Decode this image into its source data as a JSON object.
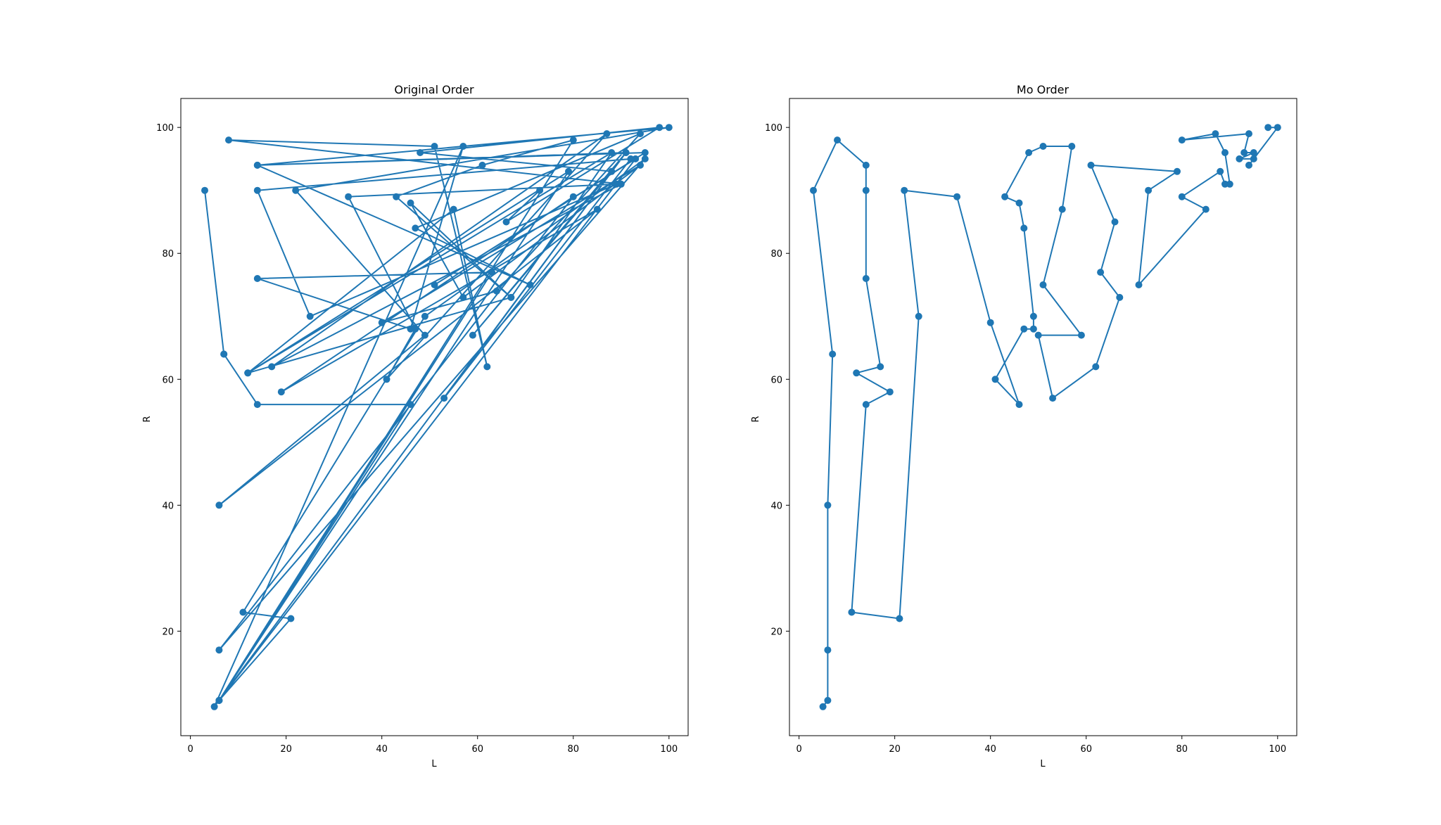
{
  "colors": {
    "series": "#1f77b4"
  },
  "chart_data": [
    {
      "type": "line",
      "title": "Original Order",
      "xlabel": "L",
      "ylabel": "R",
      "xlim": [
        -2,
        104
      ],
      "ylim": [
        3.4,
        104.6
      ],
      "xticks": [
        0,
        20,
        40,
        60,
        80,
        100
      ],
      "yticks": [
        20,
        40,
        60,
        80,
        100
      ],
      "grid": false,
      "marker": "circle",
      "points": [
        [
          3,
          90
        ],
        [
          7,
          64
        ],
        [
          7,
          64
        ],
        [
          14,
          56
        ],
        [
          46,
          56
        ],
        [
          6,
          9
        ],
        [
          63,
          77
        ],
        [
          14,
          76
        ],
        [
          46,
          68
        ],
        [
          57,
          97
        ],
        [
          5,
          8
        ],
        [
          93,
          95
        ],
        [
          51,
          75
        ],
        [
          95,
          96
        ],
        [
          14,
          94
        ],
        [
          100,
          100
        ],
        [
          22,
          90
        ],
        [
          49,
          67
        ],
        [
          6,
          40
        ],
        [
          85,
          87
        ],
        [
          19,
          58
        ],
        [
          80,
          89
        ],
        [
          6,
          17
        ],
        [
          95,
          95
        ],
        [
          49,
          70
        ],
        [
          11,
          23
        ],
        [
          21,
          22
        ],
        [
          6,
          9
        ],
        [
          91,
          96
        ],
        [
          53,
          57
        ],
        [
          92,
          95
        ],
        [
          14,
          90
        ],
        [
          25,
          70
        ],
        [
          89,
          91
        ],
        [
          33,
          89
        ],
        [
          47,
          68
        ],
        [
          41,
          60
        ],
        [
          87,
          99
        ],
        [
          17,
          62
        ],
        [
          90,
          91
        ],
        [
          8,
          98
        ],
        [
          51,
          97
        ],
        [
          62,
          62
        ],
        [
          55,
          87
        ],
        [
          12,
          61
        ],
        [
          88,
          96
        ],
        [
          67,
          73
        ],
        [
          43,
          89
        ],
        [
          61,
          94
        ],
        [
          80,
          98
        ],
        [
          6,
          9
        ],
        [
          79,
          93
        ],
        [
          12,
          61
        ],
        [
          67,
          73
        ],
        [
          46,
          88
        ],
        [
          57,
          73
        ],
        [
          94,
          94
        ],
        [
          40,
          69
        ],
        [
          64,
          74
        ],
        [
          94,
          99
        ],
        [
          47,
          84
        ],
        [
          71,
          75
        ],
        [
          14,
          94
        ],
        [
          91,
          96
        ],
        [
          59,
          67
        ],
        [
          88,
          93
        ],
        [
          48,
          96
        ],
        [
          98,
          100
        ],
        [
          66,
          85
        ],
        [
          73,
          90
        ]
      ]
    },
    {
      "type": "line",
      "title": "Mo Order",
      "xlabel": "L",
      "ylabel": "R",
      "xlim": [
        -2,
        104
      ],
      "ylim": [
        3.4,
        104.6
      ],
      "xticks": [
        0,
        20,
        40,
        60,
        80,
        100
      ],
      "yticks": [
        20,
        40,
        60,
        80,
        100
      ],
      "grid": false,
      "marker": "circle",
      "points": [
        [
          5,
          8
        ],
        [
          6,
          9
        ],
        [
          6,
          17
        ],
        [
          6,
          40
        ],
        [
          7,
          64
        ],
        [
          3,
          90
        ],
        [
          8,
          98
        ],
        [
          14,
          94
        ],
        [
          14,
          90
        ],
        [
          14,
          76
        ],
        [
          17,
          62
        ],
        [
          12,
          61
        ],
        [
          19,
          58
        ],
        [
          14,
          56
        ],
        [
          11,
          23
        ],
        [
          21,
          22
        ],
        [
          25,
          70
        ],
        [
          22,
          90
        ],
        [
          33,
          89
        ],
        [
          40,
          69
        ],
        [
          46,
          56
        ],
        [
          41,
          60
        ],
        [
          47,
          68
        ],
        [
          49,
          68
        ],
        [
          49,
          70
        ],
        [
          47,
          84
        ],
        [
          46,
          88
        ],
        [
          43,
          89
        ],
        [
          48,
          96
        ],
        [
          51,
          97
        ],
        [
          57,
          97
        ],
        [
          55,
          87
        ],
        [
          51,
          75
        ],
        [
          59,
          67
        ],
        [
          50,
          67
        ],
        [
          53,
          57
        ],
        [
          62,
          62
        ],
        [
          67,
          73
        ],
        [
          63,
          77
        ],
        [
          66,
          85
        ],
        [
          61,
          94
        ],
        [
          79,
          93
        ],
        [
          73,
          90
        ],
        [
          71,
          75
        ],
        [
          85,
          87
        ],
        [
          80,
          89
        ],
        [
          88,
          93
        ],
        [
          89,
          91
        ],
        [
          90,
          91
        ],
        [
          89,
          96
        ],
        [
          87,
          99
        ],
        [
          80,
          98
        ],
        [
          94,
          99
        ],
        [
          93,
          96
        ],
        [
          95,
          96
        ],
        [
          92,
          95
        ],
        [
          95,
          95
        ],
        [
          94,
          94
        ],
        [
          100,
          100
        ],
        [
          98,
          100
        ]
      ]
    }
  ]
}
